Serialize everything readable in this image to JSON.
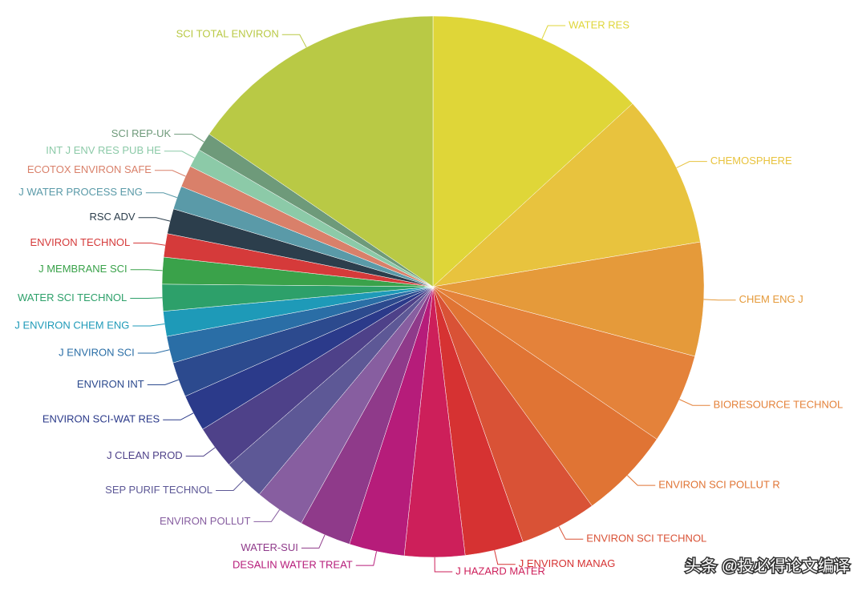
{
  "chart_data": {
    "type": "pie",
    "categories": [
      "WATER RES",
      "CHEMOSPHERE",
      "CHEM ENG J",
      "BIORESOURCE TECHNOL",
      "ENVIRON SCI POLLUT R",
      "ENVIRON SCI TECHNOL",
      "J ENVIRON MANAG",
      "J HAZARD MATER",
      "DESALIN WATER TREAT",
      "WATER-SUI",
      "ENVIRON POLLUT",
      "SEP PURIF TECHNOL",
      "J CLEAN PROD",
      "ENVIRON SCI-WAT RES",
      "ENVIRON INT",
      "J ENVIRON SCI",
      "J ENVIRON CHEM ENG",
      "WATER SCI TECHNOL",
      "J MEMBRANE SCI",
      "ENVIRON TECHNOL",
      "RSC ADV",
      "J WATER PROCESS ENG",
      "ECOTOX ENVIRON SAFE",
      "INT J ENV RES PUB HE",
      "SCI REP-UK",
      "SCI TOTAL ENVIRON"
    ],
    "values": [
      13.2,
      9.2,
      6.8,
      5.4,
      5.5,
      4.6,
      3.5,
      3.6,
      3.3,
      3.1,
      3.0,
      2.5,
      2.6,
      2.2,
      2.1,
      1.6,
      1.5,
      1.6,
      1.6,
      1.4,
      1.5,
      1.4,
      1.3,
      1.1,
      1.1,
      15.5
    ],
    "colors": [
      "#dfd638",
      "#e8c33e",
      "#e59a3a",
      "#e4823a",
      "#e07434",
      "#d95236",
      "#d63232",
      "#cd1f5a",
      "#b61c7a",
      "#8f3a8a",
      "#875ea0",
      "#5d5896",
      "#4e4189",
      "#2b3a8a",
      "#2c4a8e",
      "#2a6ea6",
      "#1e9ab8",
      "#2da06a",
      "#3aa24a",
      "#d53a3a",
      "#2c3e4c",
      "#5a9aa8",
      "#d9806a",
      "#8ccaa8",
      "#6e9a7a",
      "#b9c945"
    ],
    "watermark": "头条 @投必得论文编译"
  }
}
